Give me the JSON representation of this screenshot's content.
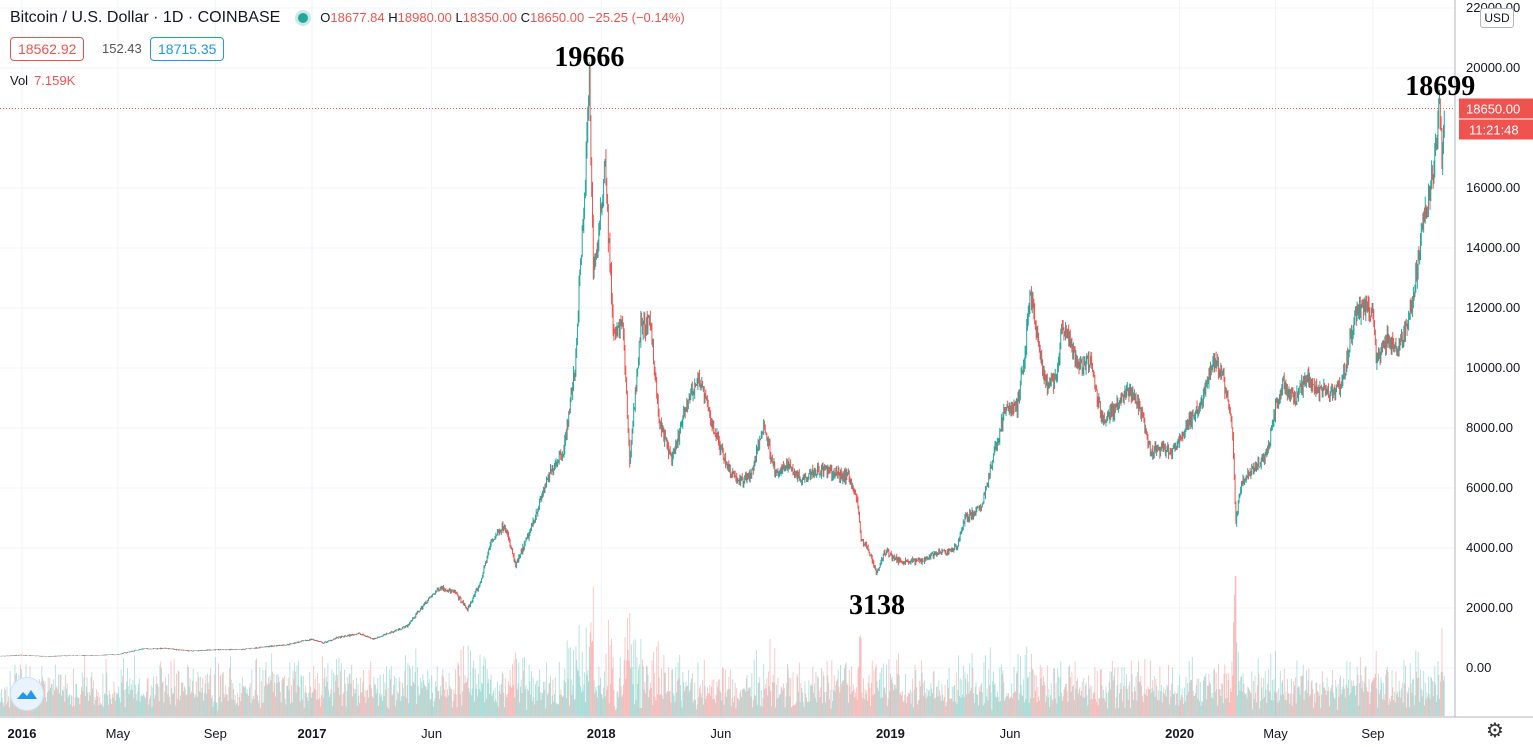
{
  "header": {
    "symbol": "Bitcoin / U.S. Dollar · 1D · COINBASE",
    "open_label": "O",
    "open": "18677.84",
    "high_label": "H",
    "high": "18980.00",
    "low_label": "L",
    "low": "18350.00",
    "close_label": "C",
    "close": "18650.00",
    "change": "−25.25 (−0.14%)"
  },
  "quote": {
    "bid": "18562.92",
    "spread": "152.43",
    "ask": "18715.35"
  },
  "volume": {
    "label": "Vol",
    "value": "7.159K"
  },
  "currency": "USD",
  "colors": {
    "up": "#26a69a",
    "down": "#ef5350",
    "grid": "#f0f3fa",
    "axis_text": "#131722",
    "last_price": "#ef5350"
  },
  "icons": {
    "settings": "gear-icon",
    "logo": "tradingview-cloud-icon"
  },
  "chart_data": {
    "type": "line",
    "x_ticks": [
      "2016",
      "May",
      "Sep",
      "2017",
      "Jun",
      "2018",
      "Jun",
      "2019",
      "Jun",
      "2020",
      "May",
      "Sep"
    ],
    "y_ticks": [
      "22000.00",
      "20000.00",
      "16000.00",
      "14000.00",
      "12000.00",
      "10000.00",
      "8000.00",
      "6000.00",
      "4000.00",
      "2000.00",
      "0.00"
    ],
    "ylim": [
      -1500,
      22000
    ],
    "last_price": "18650.00",
    "countdown": "11:21:48",
    "annotations": [
      {
        "text": "19666",
        "date": "2017-12-17",
        "value": 19666
      },
      {
        "text": "3138",
        "date": "2018-12-15",
        "value": 3138
      },
      {
        "text": "18699",
        "date": "2020-11-25",
        "value": 18699
      }
    ],
    "series": [
      {
        "x": [
          "2015-12-01",
          "2016-01-01",
          "2016-02-01",
          "2016-03-01",
          "2016-04-01",
          "2016-05-01",
          "2016-06-01",
          "2016-07-01",
          "2016-08-01",
          "2016-09-01",
          "2016-10-01",
          "2016-11-01",
          "2016-12-01",
          "2017-01-01",
          "2017-01-15",
          "2017-02-01",
          "2017-03-01",
          "2017-03-20",
          "2017-04-01",
          "2017-05-01",
          "2017-05-25",
          "2017-06-12",
          "2017-07-01",
          "2017-07-16",
          "2017-08-01",
          "2017-08-15",
          "2017-09-01",
          "2017-09-15",
          "2017-10-01",
          "2017-10-20",
          "2017-11-01",
          "2017-11-15",
          "2017-11-29",
          "2017-12-07",
          "2017-12-10",
          "2017-12-17",
          "2017-12-22",
          "2017-12-28",
          "2018-01-06",
          "2018-01-10",
          "2018-01-17",
          "2018-01-28",
          "2018-02-06",
          "2018-02-20",
          "2018-03-05",
          "2018-03-15",
          "2018-04-01",
          "2018-04-20",
          "2018-05-05",
          "2018-05-20",
          "2018-06-10",
          "2018-06-25",
          "2018-07-10",
          "2018-07-25",
          "2018-08-10",
          "2018-08-25",
          "2018-09-10",
          "2018-09-25",
          "2018-10-10",
          "2018-10-25",
          "2018-11-10",
          "2018-11-20",
          "2018-11-25",
          "2018-12-05",
          "2018-12-15",
          "2018-12-25",
          "2019-01-10",
          "2019-01-25",
          "2019-02-10",
          "2019-02-25",
          "2019-03-10",
          "2019-03-25",
          "2019-04-05",
          "2019-04-25",
          "2019-05-10",
          "2019-05-25",
          "2019-06-10",
          "2019-06-20",
          "2019-06-26",
          "2019-07-05",
          "2019-07-16",
          "2019-07-30",
          "2019-08-06",
          "2019-08-25",
          "2019-09-10",
          "2019-09-25",
          "2019-10-10",
          "2019-10-26",
          "2019-11-10",
          "2019-11-25",
          "2019-12-10",
          "2019-12-25",
          "2020-01-10",
          "2020-01-25",
          "2020-02-13",
          "2020-02-25",
          "2020-03-08",
          "2020-03-12",
          "2020-03-20",
          "2020-04-01",
          "2020-04-20",
          "2020-05-01",
          "2020-05-10",
          "2020-05-25",
          "2020-06-10",
          "2020-06-25",
          "2020-07-10",
          "2020-07-25",
          "2020-08-10",
          "2020-08-17",
          "2020-09-01",
          "2020-09-05",
          "2020-09-20",
          "2020-10-01",
          "2020-10-15",
          "2020-10-25",
          "2020-11-05",
          "2020-11-15",
          "2020-11-24",
          "2020-11-27",
          "2020-11-30"
        ],
        "values": [
          380,
          430,
          380,
          415,
          420,
          450,
          640,
          650,
          570,
          610,
          610,
          700,
          780,
          960,
          830,
          1000,
          1150,
          970,
          1090,
          1400,
          2200,
          2700,
          2500,
          1950,
          2800,
          4200,
          4800,
          3400,
          4400,
          5900,
          6700,
          7300,
          10000,
          14000,
          15000,
          19666,
          13500,
          14000,
          17100,
          14500,
          11000,
          11500,
          6900,
          11400,
          11400,
          8200,
          6900,
          8900,
          9700,
          8200,
          6700,
          6200,
          6500,
          8100,
          6400,
          6800,
          6300,
          6550,
          6600,
          6450,
          6400,
          5600,
          4300,
          3900,
          3138,
          3900,
          3600,
          3550,
          3600,
          3800,
          3850,
          4000,
          5000,
          5300,
          6900,
          8600,
          8700,
          10500,
          12600,
          11000,
          9400,
          9600,
          11500,
          10100,
          10200,
          8300,
          8600,
          9250,
          8800,
          7200,
          7300,
          7200,
          8100,
          8600,
          10300,
          9700,
          7900,
          4900,
          6200,
          6600,
          7100,
          8700,
          9500,
          8900,
          9700,
          9300,
          9200,
          9550,
          11800,
          12000,
          11900,
          10300,
          11000,
          10600,
          11500,
          13000,
          15000,
          16300,
          18699,
          17000,
          18650
        ]
      }
    ]
  }
}
